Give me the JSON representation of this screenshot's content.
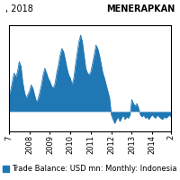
{
  "chart_data": {
    "type": "area",
    "annotations": [
      ", 2018",
      "MENERAPKAN"
    ],
    "categories": [
      "7",
      null,
      null,
      null,
      null,
      null,
      null,
      null,
      null,
      null,
      null,
      null,
      "2008",
      null,
      null,
      null,
      null,
      null,
      null,
      null,
      null,
      null,
      null,
      null,
      "2009",
      null,
      null,
      null,
      null,
      null,
      null,
      null,
      null,
      null,
      null,
      null,
      "2010",
      null,
      null,
      null,
      null,
      null,
      null,
      null,
      null,
      null,
      null,
      null,
      "2011",
      null,
      null,
      null,
      null,
      null,
      null,
      null,
      null,
      null,
      null,
      null,
      "2012",
      null,
      null,
      null,
      null,
      null,
      null,
      null,
      null,
      null,
      null,
      null,
      "2013",
      null,
      null,
      null,
      null,
      null,
      null,
      null,
      null,
      null,
      null,
      null,
      "2014",
      null,
      null,
      null,
      null,
      null,
      null,
      null,
      null,
      null,
      null,
      "2"
    ],
    "series": [
      {
        "name": "Trade Balance: USD mn: Monthly: Indonesia",
        "values": [
          2.5,
          3.2,
          4.5,
          5.8,
          5.2,
          6.0,
          7.5,
          6.8,
          4.5,
          3.0,
          2.0,
          2.5,
          3.0,
          4.0,
          3.5,
          2.5,
          1.5,
          1.8,
          2.8,
          4.0,
          5.5,
          6.5,
          5.8,
          5.0,
          4.5,
          3.8,
          3.5,
          4.2,
          5.8,
          7.0,
          8.5,
          9.5,
          9.0,
          7.8,
          6.5,
          5.5,
          5.0,
          4.0,
          5.0,
          7.0,
          8.8,
          10.5,
          11.5,
          10.5,
          8.5,
          6.5,
          5.8,
          5.5,
          6.0,
          7.2,
          8.5,
          10.0,
          9.5,
          8.5,
          7.2,
          5.8,
          5.0,
          4.0,
          3.0,
          2.0,
          -0.5,
          -1.2,
          -1.8,
          -1.2,
          -0.8,
          -1.5,
          -1.0,
          -0.5,
          -1.2,
          -0.8,
          -1.0,
          -0.5,
          1.8,
          1.2,
          0.8,
          1.2,
          0.5,
          -0.5,
          -0.8,
          -0.5,
          -1.0,
          -0.8,
          -1.2,
          -0.8,
          -0.5,
          -0.8,
          -1.0,
          -0.5,
          -0.8,
          -1.0,
          -1.2,
          -0.8,
          -1.0,
          -0.8,
          -0.5,
          -0.8
        ]
      }
    ],
    "ylim": [
      -3.0,
      13.0
    ],
    "tick_labels": "x",
    "legend": "lower center"
  }
}
